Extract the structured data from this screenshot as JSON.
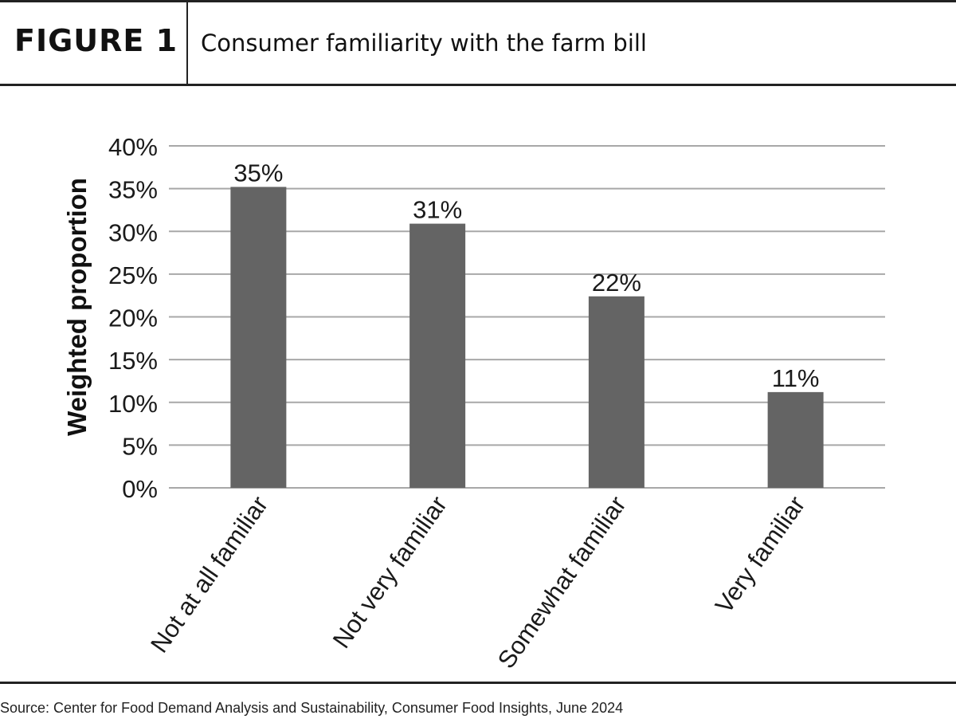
{
  "header": {
    "figure_label": "FIGURE 1",
    "title": "Consumer familiarity with the farm bill"
  },
  "chart_data": {
    "type": "bar",
    "categories": [
      "Not at all familiar",
      "Not very familiar",
      "Somewhat familiar",
      "Very familiar"
    ],
    "values": [
      35.2,
      30.9,
      22.4,
      11.2
    ],
    "data_labels": [
      "35%",
      "31%",
      "22%",
      "11%"
    ],
    "ylabel": "Weighted proportion",
    "ylim": [
      0,
      40
    ],
    "yticks": [
      0,
      5,
      10,
      15,
      20,
      25,
      30,
      35,
      40
    ],
    "ytick_labels": [
      "0%",
      "5%",
      "10%",
      "15%",
      "20%",
      "25%",
      "30%",
      "35%",
      "40%"
    ],
    "grid": true,
    "bar_color": "#646464"
  },
  "footer": {
    "source": "Source: Center for Food Demand Analysis and Sustainability, Consumer Food Insights, June 2024"
  }
}
